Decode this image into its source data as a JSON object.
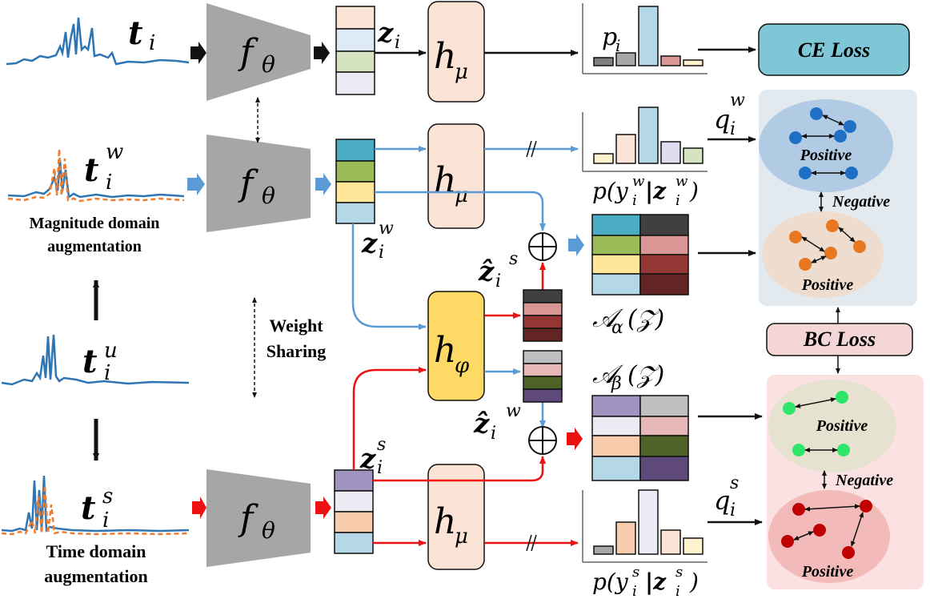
{
  "labels": {
    "ce_loss": "CE Loss",
    "bc_loss": "BC Loss",
    "positive": "Positive",
    "negative": "Negative",
    "weight_sharing_1": "Weight",
    "weight_sharing_2": "Sharing",
    "magnitude_1": "Magnitude domain",
    "magnitude_2": "augmentation",
    "time_1": "Time domain",
    "time_2": "augmentation"
  },
  "math": {
    "t_base": "t",
    "t_i_sub": "i",
    "t_w_sup": "w",
    "t_u_sup": "u",
    "t_s_sup": "s",
    "f": "f",
    "theta": "θ",
    "h": "h",
    "mu": "μ",
    "phi": "φ",
    "z": "z",
    "p_i": "p",
    "q": "q",
    "alpha_set": "𝒜",
    "alpha": "α",
    "beta": "β",
    "Z": "(𝒵)",
    "oplus": "⊕",
    "py_w": "p(y",
    "py_mid": "|z",
    "close_paren": ")"
  },
  "colors": {
    "blue_arrow": "#5b9bd5",
    "red_arrow": "#ee1111",
    "encoder_gray": "#a6a6a6",
    "head_fill": "#fbe4d5",
    "head_phi_fill": "#ffd966",
    "ce_fill": "#7fc6d6",
    "bc_fill": "#f4d6d6",
    "weak_panel": "#e2eaf0",
    "strong_panel": "#fbe1e1"
  }
}
